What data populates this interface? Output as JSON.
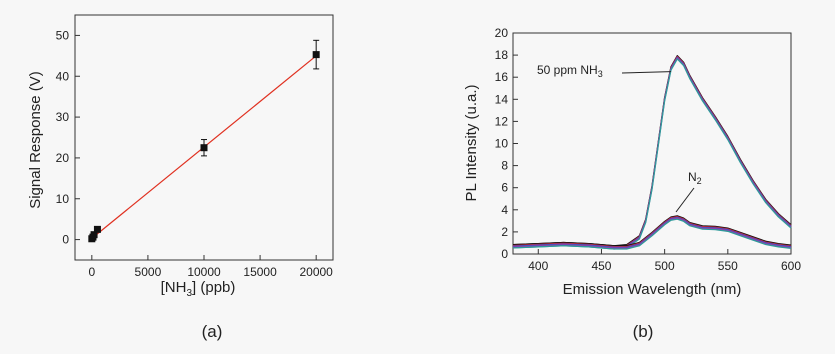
{
  "panels": {
    "a_label": "(a)",
    "b_label": "(b)"
  },
  "chart_data": [
    {
      "type": "scatter",
      "panel": "(a)",
      "xlabel": "[NH3] (ppb)",
      "xlabel_parts": {
        "prefix": "[NH",
        "sub": "3",
        "suffix": "] (ppb)"
      },
      "ylabel": "Signal Response (V)",
      "xlim": [
        -1500,
        21500
      ],
      "ylim": [
        -5,
        55
      ],
      "xticks": [
        0,
        5000,
        10000,
        15000,
        20000
      ],
      "yticks": [
        0,
        10,
        20,
        30,
        40,
        50
      ],
      "grid": false,
      "series": [
        {
          "marker": "square",
          "color": "#111111",
          "points": [
            {
              "x": 0,
              "y": 0.2,
              "err": 0.3
            },
            {
              "x": 100,
              "y": 0.6,
              "err": 0.3
            },
            {
              "x": 200,
              "y": 1.2,
              "err": 0.4
            },
            {
              "x": 500,
              "y": 2.5,
              "err": 0.5
            },
            {
              "x": 10000,
              "y": 22.5,
              "err": 2.0
            },
            {
              "x": 20000,
              "y": 45.3,
              "err": 3.5
            }
          ]
        }
      ],
      "fit_line": {
        "color": "#e03020",
        "x": [
          0,
          20000
        ],
        "y": [
          0.3,
          45.0
        ]
      }
    },
    {
      "type": "line",
      "panel": "(b)",
      "xlabel": "Emission Wavelength (nm)",
      "ylabel": "PL Intensity (u.a.)",
      "xlim": [
        380,
        600
      ],
      "ylim": [
        0,
        20
      ],
      "xticks": [
        400,
        450,
        500,
        550,
        600
      ],
      "yticks": [
        0,
        2,
        4,
        6,
        8,
        10,
        12,
        14,
        16,
        18,
        20
      ],
      "grid": false,
      "colors": [
        "#111111",
        "#c0283c",
        "#3a52c8",
        "#9a3aa8",
        "#2e9a9a"
      ],
      "series": [
        {
          "group": "NH3",
          "x": [
            380,
            400,
            420,
            440,
            460,
            470,
            480,
            485,
            490,
            495,
            500,
            505,
            510,
            515,
            520,
            530,
            540,
            550,
            560,
            570,
            580,
            590,
            600
          ],
          "y": [
            0.7,
            0.8,
            0.9,
            0.8,
            0.6,
            0.7,
            1.5,
            3.0,
            6.0,
            10.0,
            14.0,
            16.8,
            17.8,
            17.2,
            16.0,
            14.0,
            12.3,
            10.5,
            8.4,
            6.5,
            4.8,
            3.5,
            2.5
          ]
        },
        {
          "group": "N2",
          "x": [
            380,
            400,
            420,
            440,
            460,
            470,
            480,
            490,
            500,
            505,
            510,
            515,
            520,
            530,
            540,
            550,
            560,
            570,
            580,
            590,
            600
          ],
          "y": [
            0.7,
            0.8,
            0.9,
            0.8,
            0.6,
            0.6,
            0.9,
            1.8,
            2.8,
            3.2,
            3.3,
            3.1,
            2.7,
            2.4,
            2.35,
            2.2,
            1.8,
            1.4,
            1.0,
            0.8,
            0.65
          ]
        }
      ],
      "annotations": [
        {
          "label": "50 ppm NH3",
          "parts": {
            "prefix": "50 ppm NH",
            "sub": "3"
          },
          "target": [
            505,
            16.5
          ]
        },
        {
          "label": "N2",
          "parts": {
            "prefix": "N",
            "sub": "2"
          },
          "target": [
            509,
            3.8
          ]
        }
      ]
    }
  ]
}
